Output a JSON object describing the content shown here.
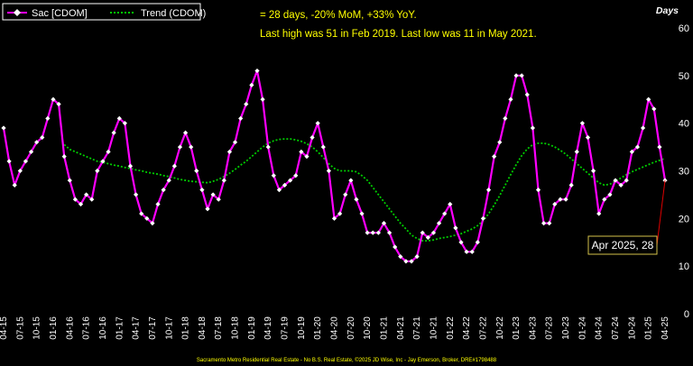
{
  "chart_data": {
    "type": "line",
    "title": "",
    "xlabel": "",
    "ylabel": "",
    "y_unit_label": "Days",
    "ylim": [
      0,
      60
    ],
    "y_ticks": [
      0,
      10,
      20,
      30,
      40,
      50,
      60
    ],
    "y_axis_side": "right",
    "grid": false,
    "background": "#000000",
    "legend_placement": "top-left",
    "start_month": "2015-04",
    "x_tick_labels": [
      "04-15",
      "07-15",
      "10-15",
      "01-16",
      "04-16",
      "07-16",
      "10-16",
      "01-17",
      "04-17",
      "07-17",
      "10-17",
      "01-18",
      "04-18",
      "07-18",
      "10-18",
      "01-19",
      "04-19",
      "07-19",
      "10-19",
      "01-20",
      "04-20",
      "07-20",
      "10-20",
      "01-21",
      "04-21",
      "07-21",
      "10-21",
      "01-22",
      "04-22",
      "07-22",
      "10-22",
      "01-23",
      "04-23",
      "07-23",
      "10-23",
      "01-24",
      "04-24",
      "07-24",
      "10-24",
      "01-25",
      "04-25"
    ],
    "series": [
      {
        "name": "Sac [CDOM]",
        "color": "#ff00ff",
        "marker": "diamond",
        "marker_color": "#ffffff",
        "style": "solid",
        "values": [
          39,
          32,
          27,
          30,
          32,
          34,
          36,
          37,
          41,
          45,
          44,
          33,
          28,
          24,
          23,
          25,
          24,
          30,
          32,
          34,
          38,
          41,
          40,
          31,
          25,
          21,
          20,
          19,
          23,
          26,
          28,
          31,
          35,
          38,
          35,
          30,
          26,
          22,
          25,
          24,
          28,
          34,
          36,
          41,
          44,
          48,
          51,
          45,
          35,
          29,
          26,
          27,
          28,
          29,
          34,
          33,
          37,
          40,
          35,
          30,
          20,
          21,
          25,
          28,
          24,
          21,
          17,
          17,
          17,
          19,
          17,
          14,
          12,
          11,
          11,
          12,
          17,
          16,
          17,
          19,
          21,
          23,
          18,
          15,
          13,
          13,
          15,
          20,
          26,
          33,
          36,
          41,
          45,
          50,
          50,
          46,
          39,
          26,
          19,
          19,
          23,
          24,
          24,
          27,
          34,
          40,
          37,
          30,
          21,
          24,
          25,
          28,
          27,
          28,
          34,
          35,
          39,
          45,
          43,
          35,
          28
        ]
      },
      {
        "name": "Trend (CDOM)",
        "color": "#00cc00",
        "style": "dotted",
        "values": [
          null,
          null,
          null,
          null,
          null,
          null,
          null,
          null,
          null,
          null,
          null,
          35.5,
          34.5,
          34,
          33.5,
          33,
          32.5,
          32,
          31.8,
          31.5,
          31.2,
          31,
          30.7,
          30.5,
          30.2,
          30,
          29.7,
          29.5,
          29.3,
          29,
          28.8,
          28.5,
          28.2,
          28,
          27.8,
          27.7,
          27.6,
          27.5,
          27.8,
          28.2,
          28.8,
          29.5,
          30.3,
          31.2,
          32,
          33,
          34,
          35,
          35.8,
          36.3,
          36.6,
          36.7,
          36.7,
          36.5,
          36.2,
          35.7,
          35,
          34,
          32.8,
          31.5,
          30.5,
          30,
          30,
          30,
          29.8,
          29,
          28,
          26.5,
          25,
          23.5,
          22,
          20.5,
          19,
          17.8,
          16.5,
          15.8,
          15.3,
          15.3,
          15.5,
          15.8,
          16,
          16.2,
          16.5,
          16.8,
          17.3,
          17.8,
          18.5,
          19.5,
          21,
          22.8,
          24.8,
          27,
          29.2,
          31.3,
          33.2,
          34.6,
          35.5,
          35.8,
          35.8,
          35.5,
          35,
          34.3,
          33.5,
          32.5,
          31.5,
          30.5,
          29.5,
          28.5,
          27.5,
          27,
          27.2,
          27.8,
          28.5,
          29.2,
          29.8,
          30.3,
          30.8,
          31.3,
          31.8,
          32.2,
          32.6
        ]
      }
    ],
    "annotations": [
      "= 28 days, -20% MoM, +33% YoY.",
      "Last high was 51 in Feb 2019. Last low was 11 in May 2021."
    ],
    "callout": {
      "label": "Apr 2025,  28",
      "value": 28,
      "line_color": "#e00000"
    },
    "footer": "Sacramento Metro Residential Real Estate - No B.S. Real Estate, ©2025 JD Wise, Inc - Jay Emerson, Broker, DRE#1798488"
  }
}
